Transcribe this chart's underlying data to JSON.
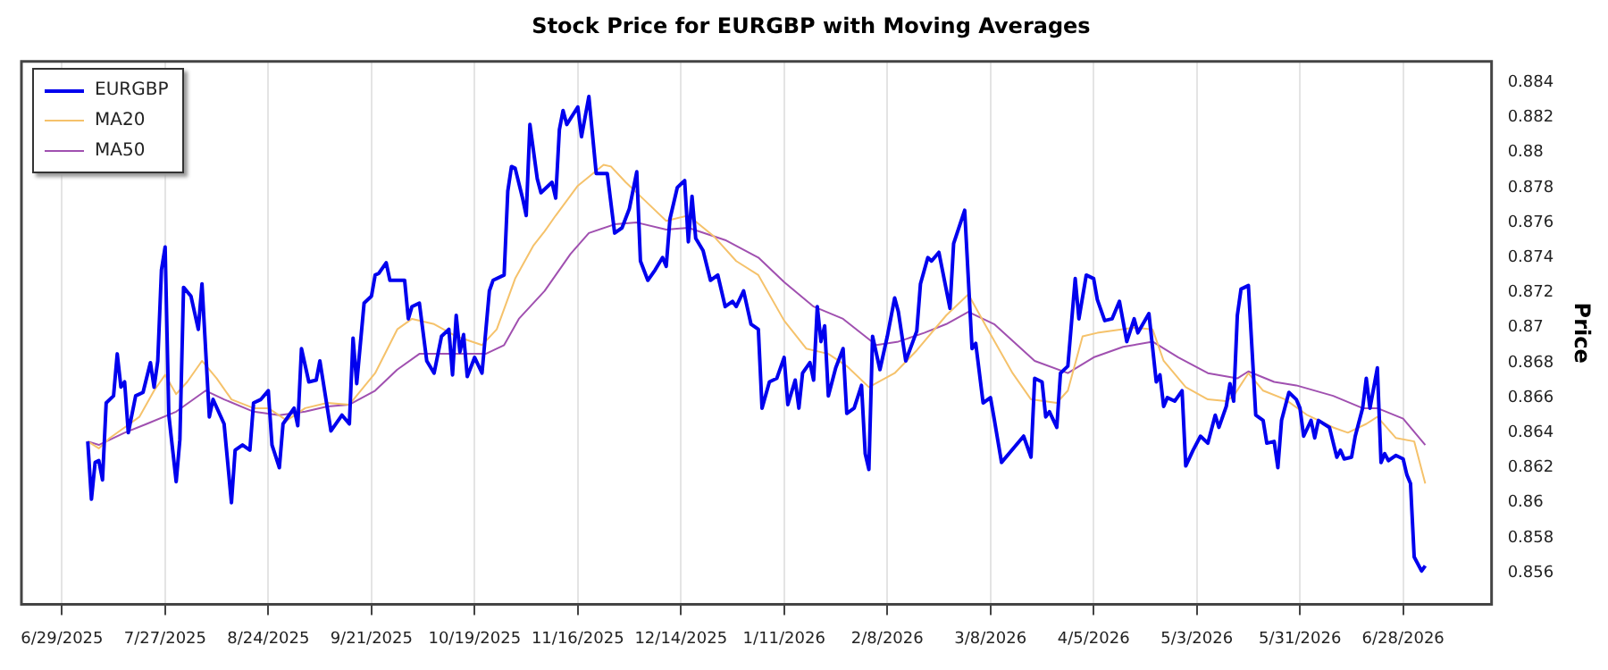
{
  "chart_data": {
    "type": "line",
    "title": "Stock Price for EURGBP with Moving Averages",
    "ylabel": "Price",
    "grid": "x",
    "legend": "top left",
    "marker": "none",
    "line_style": "solid",
    "xlim": [
      "2025-06-18",
      "2026-07-22"
    ],
    "xticks": [
      {
        "value": "2025-06-29",
        "label": "6/29/2025"
      },
      {
        "value": "2025-07-27",
        "label": "7/27/2025"
      },
      {
        "value": "2025-08-24",
        "label": "8/24/2025"
      },
      {
        "value": "2025-09-21",
        "label": "9/21/2025"
      },
      {
        "value": "2025-10-19",
        "label": "10/19/2025"
      },
      {
        "value": "2025-11-16",
        "label": "11/16/2025"
      },
      {
        "value": "2025-12-14",
        "label": "12/14/2025"
      },
      {
        "value": "2026-01-11",
        "label": "1/11/2026"
      },
      {
        "value": "2026-02-08",
        "label": "2/8/2026"
      },
      {
        "value": "2026-03-08",
        "label": "3/8/2026"
      },
      {
        "value": "2026-04-05",
        "label": "4/5/2026"
      },
      {
        "value": "2026-05-03",
        "label": "5/3/2026"
      },
      {
        "value": "2026-05-31",
        "label": "5/31/2026"
      },
      {
        "value": "2026-06-28",
        "label": "6/28/2026"
      }
    ],
    "ylim": [
      0.8542,
      0.8852
    ],
    "yticks": [
      0.856,
      0.858,
      0.86,
      0.862,
      0.864,
      0.866,
      0.868,
      0.87,
      0.872,
      0.874,
      0.876,
      0.878,
      0.88,
      0.882,
      0.884
    ],
    "series": [
      {
        "name": "EURGBP",
        "color": "#0000ee",
        "x": [
          "2025-07-06",
          "2025-07-07",
          "2025-07-08",
          "2025-07-09",
          "2025-07-10",
          "2025-07-11",
          "2025-07-13",
          "2025-07-14",
          "2025-07-15",
          "2025-07-16",
          "2025-07-17",
          "2025-07-19",
          "2025-07-21",
          "2025-07-23",
          "2025-07-24",
          "2025-07-25",
          "2025-07-26",
          "2025-07-27",
          "2025-07-28",
          "2025-07-30",
          "2025-07-31",
          "2025-08-01",
          "2025-08-03",
          "2025-08-05",
          "2025-08-06",
          "2025-08-08",
          "2025-08-09",
          "2025-08-12",
          "2025-08-14",
          "2025-08-15",
          "2025-08-17",
          "2025-08-19",
          "2025-08-20",
          "2025-08-22",
          "2025-08-24",
          "2025-08-25",
          "2025-08-27",
          "2025-08-28",
          "2025-08-31",
          "2025-09-01",
          "2025-09-02",
          "2025-09-04",
          "2025-09-06",
          "2025-09-07",
          "2025-09-10",
          "2025-09-13",
          "2025-09-15",
          "2025-09-16",
          "2025-09-17",
          "2025-09-19",
          "2025-09-21",
          "2025-09-22",
          "2025-09-23",
          "2025-09-25",
          "2025-09-26",
          "2025-09-30",
          "2025-10-01",
          "2025-10-02",
          "2025-10-04",
          "2025-10-06",
          "2025-10-08",
          "2025-10-10",
          "2025-10-12",
          "2025-10-13",
          "2025-10-14",
          "2025-10-15",
          "2025-10-16",
          "2025-10-17",
          "2025-10-19",
          "2025-10-21",
          "2025-10-23",
          "2025-10-24",
          "2025-10-27",
          "2025-10-28",
          "2025-10-29",
          "2025-10-30",
          "2025-11-01",
          "2025-11-02",
          "2025-11-03",
          "2025-11-05",
          "2025-11-06",
          "2025-11-09",
          "2025-11-10",
          "2025-11-11",
          "2025-11-12",
          "2025-11-13",
          "2025-11-16",
          "2025-11-17",
          "2025-11-19",
          "2025-11-21",
          "2025-11-24",
          "2025-11-26",
          "2025-11-28",
          "2025-11-30",
          "2025-12-02",
          "2025-12-03",
          "2025-12-05",
          "2025-12-07",
          "2025-12-09",
          "2025-12-10",
          "2025-12-11",
          "2025-12-13",
          "2025-12-15",
          "2025-12-16",
          "2025-12-17",
          "2025-12-18",
          "2025-12-20",
          "2025-12-22",
          "2025-12-24",
          "2025-12-26",
          "2025-12-28",
          "2025-12-29",
          "2025-12-31",
          "2026-01-02",
          "2026-01-04",
          "2026-01-05",
          "2026-01-07",
          "2026-01-09",
          "2026-01-11",
          "2026-01-12",
          "2026-01-14",
          "2026-01-15",
          "2026-01-16",
          "2026-01-18",
          "2026-01-19",
          "2026-01-20",
          "2026-01-21",
          "2026-01-22",
          "2026-01-23",
          "2026-01-25",
          "2026-01-27",
          "2026-01-28",
          "2026-01-30",
          "2026-02-01",
          "2026-02-02",
          "2026-02-03",
          "2026-02-04",
          "2026-02-06",
          "2026-02-08",
          "2026-02-10",
          "2026-02-11",
          "2026-02-13",
          "2026-02-16",
          "2026-02-17",
          "2026-02-19",
          "2026-02-20",
          "2026-02-22",
          "2026-02-25",
          "2026-02-26",
          "2026-03-01",
          "2026-03-03",
          "2026-03-04",
          "2026-03-06",
          "2026-03-08",
          "2026-03-09",
          "2026-03-11",
          "2026-03-17",
          "2026-03-19",
          "2026-03-20",
          "2026-03-22",
          "2026-03-23",
          "2026-03-24",
          "2026-03-26",
          "2026-03-27",
          "2026-03-29",
          "2026-03-31",
          "2026-04-01",
          "2026-04-03",
          "2026-04-05",
          "2026-04-06",
          "2026-04-08",
          "2026-04-10",
          "2026-04-12",
          "2026-04-14",
          "2026-04-16",
          "2026-04-17",
          "2026-04-20",
          "2026-04-22",
          "2026-04-23",
          "2026-04-24",
          "2026-04-25",
          "2026-04-27",
          "2026-04-29",
          "2026-04-30",
          "2026-05-02",
          "2026-05-04",
          "2026-05-06",
          "2026-05-08",
          "2026-05-09",
          "2026-05-11",
          "2026-05-12",
          "2026-05-13",
          "2026-05-14",
          "2026-05-15",
          "2026-05-17",
          "2026-05-19",
          "2026-05-21",
          "2026-05-22",
          "2026-05-24",
          "2026-05-25",
          "2026-05-26",
          "2026-05-28",
          "2026-05-30",
          "2026-05-31",
          "2026-06-01",
          "2026-06-03",
          "2026-06-04",
          "2026-06-05",
          "2026-06-08",
          "2026-06-10",
          "2026-06-11",
          "2026-06-12",
          "2026-06-14",
          "2026-06-15",
          "2026-06-17",
          "2026-06-18",
          "2026-06-19",
          "2026-06-21",
          "2026-06-22",
          "2026-06-23",
          "2026-06-24",
          "2026-06-26",
          "2026-06-28",
          "2026-06-29",
          "2026-06-30",
          "2026-07-01",
          "2026-07-03",
          "2026-07-04"
        ],
        "values": [
          0.8635,
          0.8602,
          0.8623,
          0.8624,
          0.8613,
          0.8657,
          0.8661,
          0.8685,
          0.8666,
          0.8669,
          0.864,
          0.8661,
          0.8663,
          0.868,
          0.8666,
          0.8681,
          0.8733,
          0.8746,
          0.865,
          0.8612,
          0.8636,
          0.8723,
          0.8718,
          0.8699,
          0.8725,
          0.8649,
          0.8659,
          0.8645,
          0.86,
          0.863,
          0.8633,
          0.863,
          0.8657,
          0.8659,
          0.8664,
          0.8633,
          0.862,
          0.8645,
          0.8654,
          0.8644,
          0.8688,
          0.8669,
          0.867,
          0.8681,
          0.8641,
          0.865,
          0.8645,
          0.8694,
          0.8668,
          0.8714,
          0.8718,
          0.873,
          0.8731,
          0.8737,
          0.8727,
          0.8727,
          0.8705,
          0.8712,
          0.8714,
          0.8681,
          0.8674,
          0.8695,
          0.8699,
          0.8673,
          0.8707,
          0.8686,
          0.8696,
          0.8672,
          0.8683,
          0.8674,
          0.8721,
          0.8727,
          0.873,
          0.8778,
          0.8792,
          0.8791,
          0.8774,
          0.8764,
          0.8816,
          0.8785,
          0.8777,
          0.8783,
          0.8774,
          0.8813,
          0.8824,
          0.8816,
          0.8826,
          0.8809,
          0.8832,
          0.8788,
          0.8788,
          0.8754,
          0.8757,
          0.8768,
          0.8789,
          0.8738,
          0.8727,
          0.8733,
          0.874,
          0.8735,
          0.8762,
          0.878,
          0.8784,
          0.8749,
          0.8775,
          0.8751,
          0.8744,
          0.8727,
          0.873,
          0.8712,
          0.8715,
          0.8712,
          0.8721,
          0.8702,
          0.8699,
          0.8654,
          0.8669,
          0.8671,
          0.8683,
          0.8656,
          0.867,
          0.8654,
          0.8674,
          0.868,
          0.867,
          0.8712,
          0.8692,
          0.8701,
          0.8661,
          0.8677,
          0.8688,
          0.8651,
          0.8654,
          0.8667,
          0.8628,
          0.8619,
          0.8695,
          0.8676,
          0.8695,
          0.8717,
          0.8709,
          0.8681,
          0.8698,
          0.8725,
          0.874,
          0.8738,
          0.8743,
          0.8711,
          0.8748,
          0.8767,
          0.8688,
          0.8691,
          0.8657,
          0.866,
          0.8648,
          0.8623,
          0.8638,
          0.8626,
          0.8671,
          0.8669,
          0.8649,
          0.8652,
          0.8643,
          0.8674,
          0.8678,
          0.8728,
          0.8705,
          0.873,
          0.8728,
          0.8716,
          0.8704,
          0.8705,
          0.8715,
          0.8692,
          0.8705,
          0.8697,
          0.8708,
          0.8669,
          0.8673,
          0.8655,
          0.866,
          0.8658,
          0.8664,
          0.8621,
          0.863,
          0.8638,
          0.8634,
          0.865,
          0.8643,
          0.8655,
          0.8668,
          0.8658,
          0.8707,
          0.8722,
          0.8724,
          0.865,
          0.8647,
          0.8634,
          0.8635,
          0.862,
          0.8647,
          0.8663,
          0.8659,
          0.8654,
          0.8638,
          0.8647,
          0.8637,
          0.8647,
          0.8643,
          0.8626,
          0.863,
          0.8625,
          0.8626,
          0.8638,
          0.8654,
          0.8671,
          0.8654,
          0.8677,
          0.8623,
          0.8628,
          0.8624,
          0.8627,
          0.8625,
          0.8616,
          0.8611,
          0.8569,
          0.8561,
          0.8564
        ]
      },
      {
        "name": "MA20",
        "color": "#f5c26b",
        "x": [
          "2025-07-06",
          "2025-07-09",
          "2025-07-12",
          "2025-07-16",
          "2025-07-20",
          "2025-07-24",
          "2025-07-27",
          "2025-07-30",
          "2025-08-02",
          "2025-08-06",
          "2025-08-10",
          "2025-08-14",
          "2025-08-20",
          "2025-08-24",
          "2025-08-29",
          "2025-09-03",
          "2025-09-09",
          "2025-09-15",
          "2025-09-22",
          "2025-09-28",
          "2025-10-02",
          "2025-10-08",
          "2025-10-14",
          "2025-10-21",
          "2025-10-25",
          "2025-10-30",
          "2025-11-04",
          "2025-11-07",
          "2025-11-10",
          "2025-11-16",
          "2025-11-23",
          "2025-11-25",
          "2025-11-29",
          "2025-12-04",
          "2025-12-10",
          "2025-12-16",
          "2025-12-23",
          "2025-12-29",
          "2026-01-04",
          "2026-01-11",
          "2026-01-17",
          "2026-01-23",
          "2026-01-28",
          "2026-02-03",
          "2026-02-10",
          "2026-02-16",
          "2026-02-24",
          "2026-03-02",
          "2026-03-07",
          "2026-03-14",
          "2026-03-19",
          "2026-03-26",
          "2026-03-29",
          "2026-04-02",
          "2026-04-06",
          "2026-04-16",
          "2026-04-21",
          "2026-04-24",
          "2026-04-30",
          "2026-05-06",
          "2026-05-11",
          "2026-05-13",
          "2026-05-17",
          "2026-05-21",
          "2026-05-27",
          "2026-06-02",
          "2026-06-09",
          "2026-06-13",
          "2026-06-18",
          "2026-06-21",
          "2026-06-26",
          "2026-07-01",
          "2026-07-04"
        ],
        "values": [
          0.8635,
          0.8631,
          0.8637,
          0.8643,
          0.8649,
          0.8664,
          0.8673,
          0.8662,
          0.8669,
          0.8681,
          0.8671,
          0.8659,
          0.8654,
          0.8654,
          0.8647,
          0.8654,
          0.8657,
          0.8656,
          0.8674,
          0.8699,
          0.8705,
          0.8702,
          0.8695,
          0.869,
          0.8699,
          0.8728,
          0.8747,
          0.8755,
          0.8764,
          0.8781,
          0.8793,
          0.8792,
          0.8783,
          0.8773,
          0.8761,
          0.8764,
          0.8752,
          0.8738,
          0.873,
          0.8704,
          0.8688,
          0.8685,
          0.8678,
          0.8666,
          0.8674,
          0.8687,
          0.8707,
          0.8719,
          0.87,
          0.8674,
          0.8659,
          0.8657,
          0.8664,
          0.8695,
          0.8697,
          0.87,
          0.8699,
          0.8681,
          0.8666,
          0.8659,
          0.8658,
          0.8661,
          0.8674,
          0.8664,
          0.8659,
          0.865,
          0.8643,
          0.864,
          0.8645,
          0.8649,
          0.8637,
          0.8635,
          0.8611
        ]
      },
      {
        "name": "MA50",
        "color": "#a050b0",
        "x": [
          "2025-07-06",
          "2025-07-09",
          "2025-07-16",
          "2025-07-22",
          "2025-07-30",
          "2025-08-07",
          "2025-08-12",
          "2025-08-20",
          "2025-08-27",
          "2025-09-03",
          "2025-09-09",
          "2025-09-15",
          "2025-09-22",
          "2025-09-28",
          "2025-10-04",
          "2025-10-11",
          "2025-10-17",
          "2025-10-22",
          "2025-10-27",
          "2025-10-31",
          "2025-11-07",
          "2025-11-14",
          "2025-11-19",
          "2025-11-26",
          "2025-12-02",
          "2025-12-10",
          "2025-12-16",
          "2025-12-26",
          "2026-01-04",
          "2026-01-11",
          "2026-01-19",
          "2026-01-27",
          "2026-02-05",
          "2026-02-11",
          "2026-02-18",
          "2026-02-24",
          "2026-03-02",
          "2026-03-09",
          "2026-03-20",
          "2026-03-29",
          "2026-04-05",
          "2026-04-13",
          "2026-04-21",
          "2026-04-28",
          "2026-05-06",
          "2026-05-14",
          "2026-05-17",
          "2026-05-24",
          "2026-05-30",
          "2026-06-09",
          "2026-06-17",
          "2026-06-21",
          "2026-06-28",
          "2026-07-04"
        ],
        "values": [
          0.8635,
          0.8633,
          0.864,
          0.8645,
          0.8652,
          0.8664,
          0.8659,
          0.8652,
          0.865,
          0.8652,
          0.8655,
          0.8656,
          0.8664,
          0.8676,
          0.8685,
          0.8685,
          0.8685,
          0.8685,
          0.869,
          0.8705,
          0.8721,
          0.8742,
          0.8754,
          0.8759,
          0.876,
          0.8756,
          0.8757,
          0.875,
          0.874,
          0.8726,
          0.8712,
          0.8705,
          0.869,
          0.8692,
          0.8697,
          0.8702,
          0.8709,
          0.8702,
          0.8681,
          0.8674,
          0.8683,
          0.8689,
          0.8692,
          0.8683,
          0.8674,
          0.8671,
          0.8675,
          0.8669,
          0.8667,
          0.8661,
          0.8654,
          0.8654,
          0.8648,
          0.8633
        ]
      }
    ]
  }
}
